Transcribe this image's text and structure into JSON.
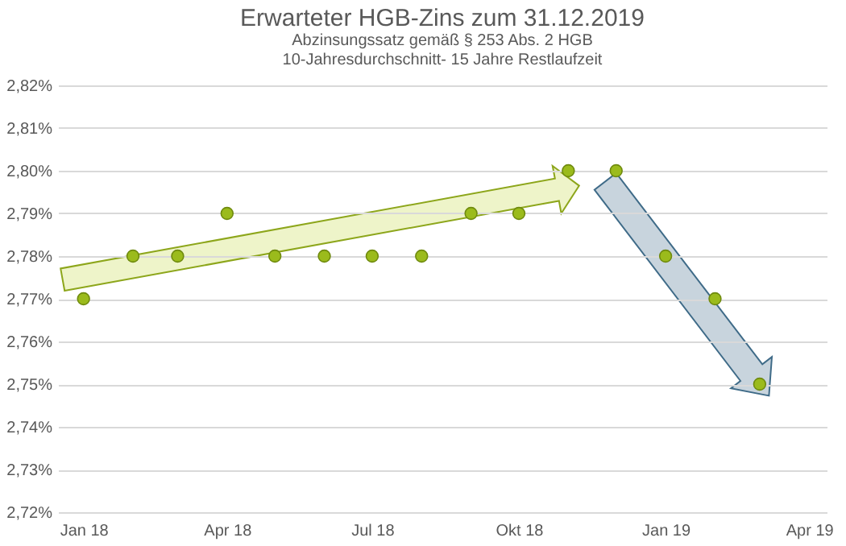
{
  "chart_data": {
    "type": "scatter",
    "title": "Erwarteter HGB-Zins zum 31.12.2019",
    "subtitle": "Abzinsungssatz gemäß § 253 Abs. 2 HGB\n10-Jahresdurchschnitt- 15 Jahre Restlaufzeit",
    "x": [
      "2018-01",
      "2018-02",
      "2018-03",
      "2018-04",
      "2018-05",
      "2018-06",
      "2018-07",
      "2018-08",
      "2018-09",
      "2018-10",
      "2018-11",
      "2018-12",
      "2019-01",
      "2019-02",
      "2019-03"
    ],
    "series": [
      {
        "color": "#9bbb1c",
        "values": [
          2.77,
          2.78,
          2.78,
          2.79,
          2.78,
          2.78,
          2.78,
          2.78,
          2.79,
          2.79,
          2.8,
          2.8,
          2.78,
          2.77,
          2.75
        ]
      }
    ],
    "xlim": [
      "2017-12-16",
      "2019-04-12"
    ],
    "xticks": [
      {
        "value": "2018-01",
        "label": "Jan 18"
      },
      {
        "value": "2018-04",
        "label": "Apr 18"
      },
      {
        "value": "2018-07",
        "label": "Jul 18"
      },
      {
        "value": "2018-10",
        "label": "Okt 18"
      },
      {
        "value": "2019-01",
        "label": "Jan 19"
      },
      {
        "value": "2019-04",
        "label": "Apr 19"
      }
    ],
    "ylim": [
      2.72,
      2.82
    ],
    "yticks": [
      {
        "value": 2.72,
        "label": "2,72%"
      },
      {
        "value": 2.73,
        "label": "2,73%"
      },
      {
        "value": 2.74,
        "label": "2,74%"
      },
      {
        "value": 2.75,
        "label": "2,75%"
      },
      {
        "value": 2.76,
        "label": "2,76%"
      },
      {
        "value": 2.77,
        "label": "2,77%"
      },
      {
        "value": 2.78,
        "label": "2,78%"
      },
      {
        "value": 2.79,
        "label": "2,79%"
      },
      {
        "value": 2.8,
        "label": "2,80%"
      },
      {
        "value": 2.81,
        "label": "2,81%"
      },
      {
        "value": 2.82,
        "label": "2,82%"
      }
    ],
    "grid": "y",
    "marker": "circle"
  }
}
